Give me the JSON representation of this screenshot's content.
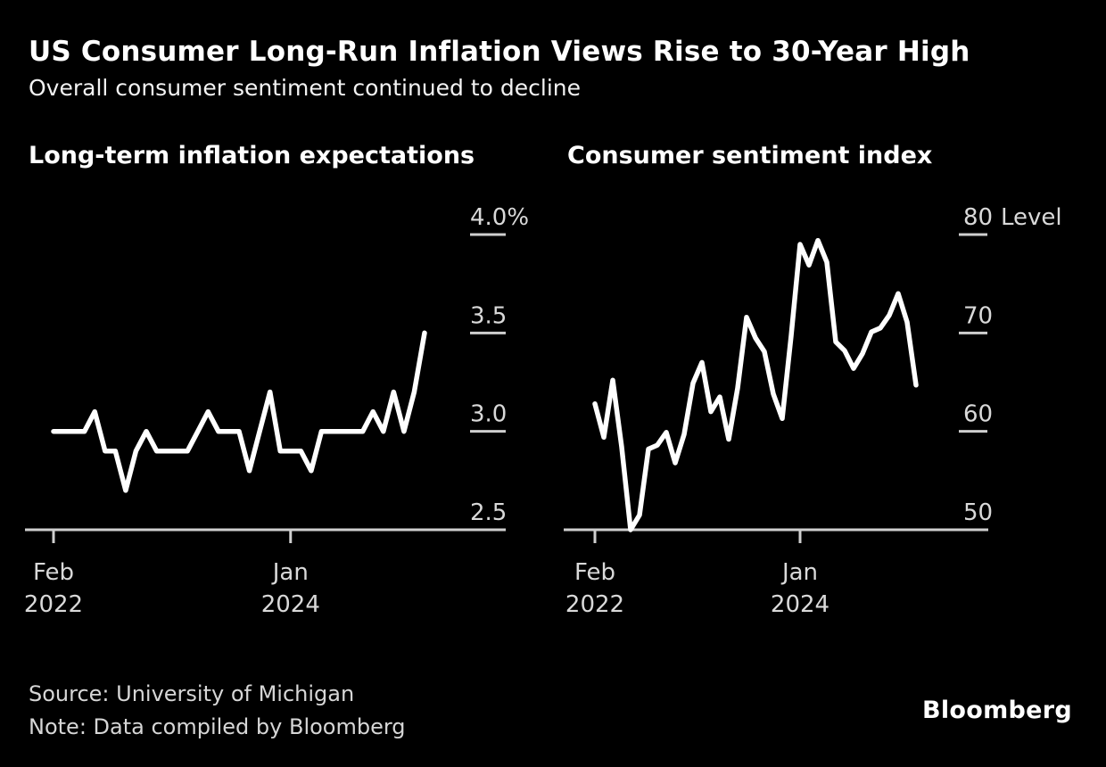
{
  "header": {
    "title": "US Consumer Long-Run Inflation Views Rise to 30-Year High",
    "subtitle": "Overall consumer sentiment continued to decline"
  },
  "colors": {
    "background": "#000000",
    "line": "#ffffff",
    "axis": "#cfcfcf",
    "tick_label": "#d9d9d9"
  },
  "chart_data": [
    {
      "type": "line",
      "title": "Long-term inflation expectations",
      "x": [
        "2022-02",
        "2022-03",
        "2022-04",
        "2022-05",
        "2022-06",
        "2022-07",
        "2022-08",
        "2022-09",
        "2022-10",
        "2022-11",
        "2022-12",
        "2023-01",
        "2023-02",
        "2023-03",
        "2023-04",
        "2023-05",
        "2023-06",
        "2023-07",
        "2023-08",
        "2023-09",
        "2023-10",
        "2023-11",
        "2023-12",
        "2024-01",
        "2024-02",
        "2024-03",
        "2024-04",
        "2024-05",
        "2024-06",
        "2024-07",
        "2024-08",
        "2024-09",
        "2024-10",
        "2024-11",
        "2024-12",
        "2025-01",
        "2025-02"
      ],
      "values": [
        3.0,
        3.0,
        3.0,
        3.0,
        3.1,
        2.9,
        2.9,
        2.7,
        2.9,
        3.0,
        2.9,
        2.9,
        2.9,
        2.9,
        3.0,
        3.1,
        3.0,
        3.0,
        3.0,
        2.8,
        3.0,
        3.2,
        2.9,
        2.9,
        2.9,
        2.8,
        3.0,
        3.0,
        3.0,
        3.0,
        3.0,
        3.1,
        3.0,
        3.2,
        3.0,
        3.2,
        3.5
      ],
      "ylim": [
        2.5,
        4.0
      ],
      "yticks": [
        {
          "value": 4.0,
          "label": "4.0%"
        },
        {
          "value": 3.5,
          "label": "3.5"
        },
        {
          "value": 3.0,
          "label": "3.0"
        },
        {
          "value": 2.5,
          "label": "2.5"
        }
      ],
      "axis_unit_label": "",
      "xticks": [
        {
          "index": 0,
          "line1": "Feb",
          "line2": "2022"
        },
        {
          "index": 23,
          "line1": "Jan",
          "line2": "2024"
        }
      ],
      "grid": "off",
      "legend": "none"
    },
    {
      "type": "line",
      "title": "Consumer sentiment index",
      "x": [
        "2022-02",
        "2022-03",
        "2022-04",
        "2022-05",
        "2022-06",
        "2022-07",
        "2022-08",
        "2022-09",
        "2022-10",
        "2022-11",
        "2022-12",
        "2023-01",
        "2023-02",
        "2023-03",
        "2023-04",
        "2023-05",
        "2023-06",
        "2023-07",
        "2023-08",
        "2023-09",
        "2023-10",
        "2023-11",
        "2023-12",
        "2024-01",
        "2024-02",
        "2024-03",
        "2024-04",
        "2024-05",
        "2024-06",
        "2024-07",
        "2024-08",
        "2024-09",
        "2024-10",
        "2024-11",
        "2024-12",
        "2025-01",
        "2025-02"
      ],
      "values": [
        62.8,
        59.4,
        65.2,
        58.4,
        50.0,
        51.5,
        58.2,
        58.6,
        59.9,
        56.8,
        59.7,
        64.9,
        67.0,
        62.0,
        63.5,
        59.2,
        64.4,
        71.6,
        69.5,
        68.1,
        63.8,
        61.3,
        69.7,
        79.0,
        76.9,
        79.4,
        77.2,
        69.1,
        68.2,
        66.4,
        67.9,
        70.1,
        70.5,
        71.8,
        74.0,
        71.1,
        64.7
      ],
      "ylim": [
        50,
        80
      ],
      "yticks": [
        {
          "value": 80,
          "label": "80"
        },
        {
          "value": 70,
          "label": "70"
        },
        {
          "value": 60,
          "label": "60"
        },
        {
          "value": 50,
          "label": "50"
        }
      ],
      "axis_unit_label": "Level",
      "xticks": [
        {
          "index": 0,
          "line1": "Feb",
          "line2": "2022"
        },
        {
          "index": 23,
          "line1": "Jan",
          "line2": "2024"
        }
      ],
      "grid": "off",
      "legend": "none"
    }
  ],
  "footer": {
    "source": "Source: University of Michigan",
    "note": "Note: Data compiled by Bloomberg",
    "logo": "Bloomberg"
  }
}
